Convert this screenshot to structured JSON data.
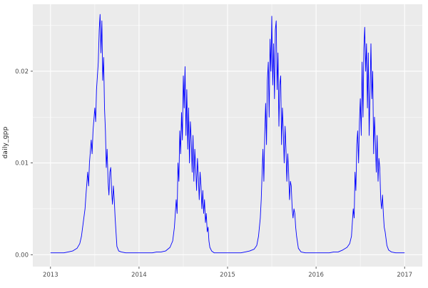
{
  "chart_data": {
    "type": "line",
    "title": "",
    "xlabel": "",
    "ylabel": "daily_gpp",
    "legend_position": "none",
    "grid": true,
    "xlim": [
      2012.8,
      2017.2
    ],
    "ylim": [
      -0.0013,
      0.0273
    ],
    "x_ticks": [
      2013,
      2014,
      2015,
      2016,
      2017
    ],
    "x_tick_labels": [
      "2013",
      "2014",
      "2015",
      "2016",
      "2017"
    ],
    "x_minor_ticks": [
      2013.5,
      2014.5,
      2015.5,
      2016.5
    ],
    "y_ticks": [
      0.0,
      0.01,
      0.02
    ],
    "y_tick_labels": [
      "0.00",
      "0.01",
      "0.02"
    ],
    "y_minor_ticks": [
      0.005,
      0.015,
      0.025
    ],
    "colors": {
      "line": "#0000FF",
      "panel_background": "#EBEBEB",
      "grid_major": "#FFFFFF",
      "grid_minor": "#FFFFFF",
      "tick_mark": "#333333",
      "tick_text": "#4D4D4D",
      "outer_background": "#FFFFFF"
    },
    "series": [
      {
        "name": "daily_gpp",
        "points": [
          [
            2013.0,
            0.0002
          ],
          [
            2013.05,
            0.0002
          ],
          [
            2013.1,
            0.0002
          ],
          [
            2013.15,
            0.0002
          ],
          [
            2013.2,
            0.0003
          ],
          [
            2013.25,
            0.0004
          ],
          [
            2013.3,
            0.0007
          ],
          [
            2013.33,
            0.0012
          ],
          [
            2013.35,
            0.002
          ],
          [
            2013.37,
            0.0035
          ],
          [
            2013.39,
            0.005
          ],
          [
            2013.4,
            0.0065
          ],
          [
            2013.42,
            0.009
          ],
          [
            2013.43,
            0.0075
          ],
          [
            2013.44,
            0.01
          ],
          [
            2013.46,
            0.0125
          ],
          [
            2013.47,
            0.011
          ],
          [
            2013.48,
            0.0135
          ],
          [
            2013.5,
            0.016
          ],
          [
            2013.51,
            0.0145
          ],
          [
            2013.52,
            0.018
          ],
          [
            2013.54,
            0.021
          ],
          [
            2013.55,
            0.0245
          ],
          [
            2013.56,
            0.0262
          ],
          [
            2013.57,
            0.022
          ],
          [
            2013.58,
            0.0255
          ],
          [
            2013.59,
            0.019
          ],
          [
            2013.6,
            0.0215
          ],
          [
            2013.61,
            0.016
          ],
          [
            2013.62,
            0.0135
          ],
          [
            2013.63,
            0.0095
          ],
          [
            2013.64,
            0.0115
          ],
          [
            2013.65,
            0.008
          ],
          [
            2013.66,
            0.0065
          ],
          [
            2013.67,
            0.009
          ],
          [
            2013.68,
            0.0095
          ],
          [
            2013.69,
            0.007
          ],
          [
            2013.7,
            0.0055
          ],
          [
            2013.71,
            0.0075
          ],
          [
            2013.72,
            0.006
          ],
          [
            2013.73,
            0.004
          ],
          [
            2013.74,
            0.0025
          ],
          [
            2013.75,
            0.0009
          ],
          [
            2013.77,
            0.0004
          ],
          [
            2013.8,
            0.0003
          ],
          [
            2013.85,
            0.0002
          ],
          [
            2013.9,
            0.0002
          ],
          [
            2013.95,
            0.0002
          ],
          [
            2014.0,
            0.0002
          ],
          [
            2014.05,
            0.0002
          ],
          [
            2014.1,
            0.0002
          ],
          [
            2014.15,
            0.0002
          ],
          [
            2014.2,
            0.0003
          ],
          [
            2014.25,
            0.0003
          ],
          [
            2014.3,
            0.0004
          ],
          [
            2014.35,
            0.0008
          ],
          [
            2014.38,
            0.0015
          ],
          [
            2014.4,
            0.003
          ],
          [
            2014.42,
            0.006
          ],
          [
            2014.43,
            0.0045
          ],
          [
            2014.44,
            0.01
          ],
          [
            2014.45,
            0.008
          ],
          [
            2014.46,
            0.0135
          ],
          [
            2014.47,
            0.011
          ],
          [
            2014.48,
            0.0155
          ],
          [
            2014.49,
            0.0125
          ],
          [
            2014.5,
            0.0195
          ],
          [
            2014.51,
            0.016
          ],
          [
            2014.52,
            0.0205
          ],
          [
            2014.53,
            0.013
          ],
          [
            2014.54,
            0.018
          ],
          [
            2014.55,
            0.0115
          ],
          [
            2014.56,
            0.016
          ],
          [
            2014.57,
            0.01
          ],
          [
            2014.58,
            0.0145
          ],
          [
            2014.59,
            0.0125
          ],
          [
            2014.6,
            0.009
          ],
          [
            2014.61,
            0.013
          ],
          [
            2014.62,
            0.008
          ],
          [
            2014.63,
            0.0115
          ],
          [
            2014.64,
            0.0095
          ],
          [
            2014.65,
            0.007
          ],
          [
            2014.66,
            0.0105
          ],
          [
            2014.67,
            0.0085
          ],
          [
            2014.68,
            0.006
          ],
          [
            2014.69,
            0.009
          ],
          [
            2014.7,
            0.0075
          ],
          [
            2014.71,
            0.005
          ],
          [
            2014.72,
            0.007
          ],
          [
            2014.73,
            0.0045
          ],
          [
            2014.74,
            0.006
          ],
          [
            2014.75,
            0.0035
          ],
          [
            2014.76,
            0.0045
          ],
          [
            2014.77,
            0.0025
          ],
          [
            2014.78,
            0.003
          ],
          [
            2014.79,
            0.0015
          ],
          [
            2014.8,
            0.0008
          ],
          [
            2014.82,
            0.0004
          ],
          [
            2014.85,
            0.0002
          ],
          [
            2014.9,
            0.0002
          ],
          [
            2014.95,
            0.0002
          ],
          [
            2015.0,
            0.0002
          ],
          [
            2015.05,
            0.0002
          ],
          [
            2015.1,
            0.0002
          ],
          [
            2015.15,
            0.0002
          ],
          [
            2015.2,
            0.0003
          ],
          [
            2015.25,
            0.0004
          ],
          [
            2015.3,
            0.0006
          ],
          [
            2015.33,
            0.001
          ],
          [
            2015.35,
            0.002
          ],
          [
            2015.37,
            0.004
          ],
          [
            2015.38,
            0.006
          ],
          [
            2015.4,
            0.0115
          ],
          [
            2015.41,
            0.008
          ],
          [
            2015.42,
            0.013
          ],
          [
            2015.43,
            0.0165
          ],
          [
            2015.44,
            0.012
          ],
          [
            2015.45,
            0.019
          ],
          [
            2015.46,
            0.021
          ],
          [
            2015.47,
            0.015
          ],
          [
            2015.48,
            0.0235
          ],
          [
            2015.49,
            0.02
          ],
          [
            2015.5,
            0.026
          ],
          [
            2015.51,
            0.0185
          ],
          [
            2015.52,
            0.023
          ],
          [
            2015.53,
            0.017
          ],
          [
            2015.54,
            0.0245
          ],
          [
            2015.55,
            0.0255
          ],
          [
            2015.56,
            0.018
          ],
          [
            2015.57,
            0.022
          ],
          [
            2015.58,
            0.014
          ],
          [
            2015.59,
            0.0185
          ],
          [
            2015.6,
            0.0195
          ],
          [
            2015.61,
            0.012
          ],
          [
            2015.62,
            0.016
          ],
          [
            2015.63,
            0.0135
          ],
          [
            2015.64,
            0.01
          ],
          [
            2015.65,
            0.014
          ],
          [
            2015.66,
            0.0115
          ],
          [
            2015.67,
            0.008
          ],
          [
            2015.68,
            0.011
          ],
          [
            2015.69,
            0.009
          ],
          [
            2015.7,
            0.006
          ],
          [
            2015.71,
            0.008
          ],
          [
            2015.72,
            0.0075
          ],
          [
            2015.73,
            0.005
          ],
          [
            2015.74,
            0.004
          ],
          [
            2015.75,
            0.005
          ],
          [
            2015.76,
            0.0045
          ],
          [
            2015.77,
            0.003
          ],
          [
            2015.78,
            0.002
          ],
          [
            2015.8,
            0.0007
          ],
          [
            2015.83,
            0.0003
          ],
          [
            2015.88,
            0.0002
          ],
          [
            2015.93,
            0.0002
          ],
          [
            2016.0,
            0.0002
          ],
          [
            2016.05,
            0.0002
          ],
          [
            2016.1,
            0.0002
          ],
          [
            2016.15,
            0.0002
          ],
          [
            2016.2,
            0.0003
          ],
          [
            2016.25,
            0.0003
          ],
          [
            2016.3,
            0.0005
          ],
          [
            2016.35,
            0.0008
          ],
          [
            2016.38,
            0.0012
          ],
          [
            2016.4,
            0.002
          ],
          [
            2016.42,
            0.005
          ],
          [
            2016.43,
            0.004
          ],
          [
            2016.44,
            0.009
          ],
          [
            2016.45,
            0.007
          ],
          [
            2016.46,
            0.012
          ],
          [
            2016.47,
            0.0135
          ],
          [
            2016.48,
            0.01
          ],
          [
            2016.49,
            0.0145
          ],
          [
            2016.5,
            0.017
          ],
          [
            2016.51,
            0.013
          ],
          [
            2016.52,
            0.021
          ],
          [
            2016.53,
            0.015
          ],
          [
            2016.54,
            0.0225
          ],
          [
            2016.55,
            0.0248
          ],
          [
            2016.56,
            0.02
          ],
          [
            2016.57,
            0.023
          ],
          [
            2016.58,
            0.016
          ],
          [
            2016.59,
            0.022
          ],
          [
            2016.6,
            0.013
          ],
          [
            2016.61,
            0.018
          ],
          [
            2016.62,
            0.023
          ],
          [
            2016.63,
            0.017
          ],
          [
            2016.64,
            0.02
          ],
          [
            2016.65,
            0.011
          ],
          [
            2016.66,
            0.015
          ],
          [
            2016.67,
            0.0125
          ],
          [
            2016.68,
            0.009
          ],
          [
            2016.69,
            0.013
          ],
          [
            2016.7,
            0.008
          ],
          [
            2016.71,
            0.0105
          ],
          [
            2016.72,
            0.0095
          ],
          [
            2016.73,
            0.006
          ],
          [
            2016.74,
            0.005
          ],
          [
            2016.75,
            0.0065
          ],
          [
            2016.76,
            0.0045
          ],
          [
            2016.77,
            0.003
          ],
          [
            2016.78,
            0.0025
          ],
          [
            2016.8,
            0.001
          ],
          [
            2016.82,
            0.0005
          ],
          [
            2016.85,
            0.0003
          ],
          [
            2016.9,
            0.0002
          ],
          [
            2016.95,
            0.0002
          ],
          [
            2017.0,
            0.0002
          ]
        ]
      }
    ]
  }
}
